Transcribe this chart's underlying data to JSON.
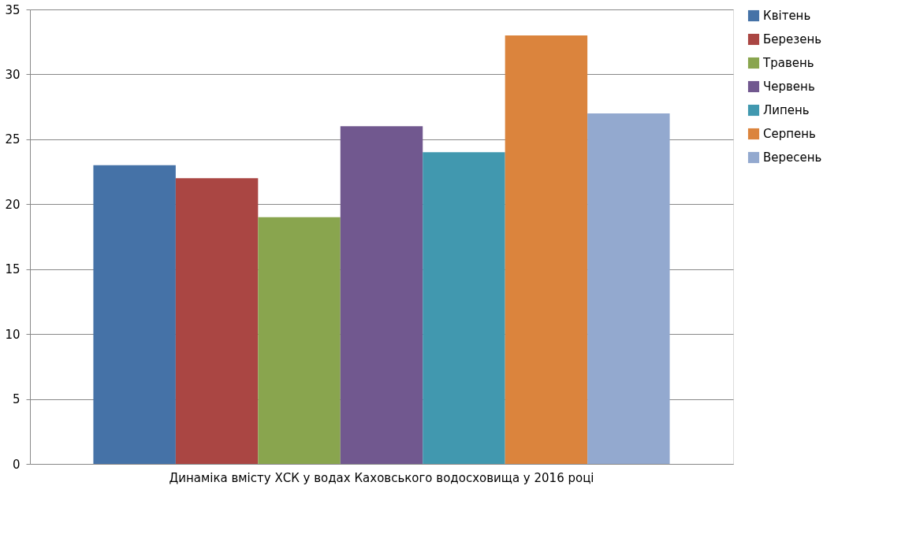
{
  "chart_data": {
    "type": "bar",
    "categories": [
      "Динаміка вмісту ХСК у водах Каховського водосховища у 2016 році"
    ],
    "series": [
      {
        "name": "Квітень",
        "color": "#4572a7",
        "values": [
          23
        ]
      },
      {
        "name": "Березень",
        "color": "#aa4643",
        "values": [
          22
        ]
      },
      {
        "name": "Травень",
        "color": "#89a54e",
        "values": [
          19
        ]
      },
      {
        "name": "Червень",
        "color": "#71588f",
        "values": [
          26
        ]
      },
      {
        "name": "Липень",
        "color": "#4198af",
        "values": [
          24
        ]
      },
      {
        "name": "Серпень",
        "color": "#db843d",
        "values": [
          33
        ]
      },
      {
        "name": "Вересень",
        "color": "#93a9cf",
        "values": [
          27
        ]
      }
    ],
    "ylim": [
      0,
      35
    ],
    "yticks": [
      0,
      5,
      10,
      15,
      20,
      25,
      30,
      35
    ],
    "grid": "y",
    "legend": "right"
  }
}
